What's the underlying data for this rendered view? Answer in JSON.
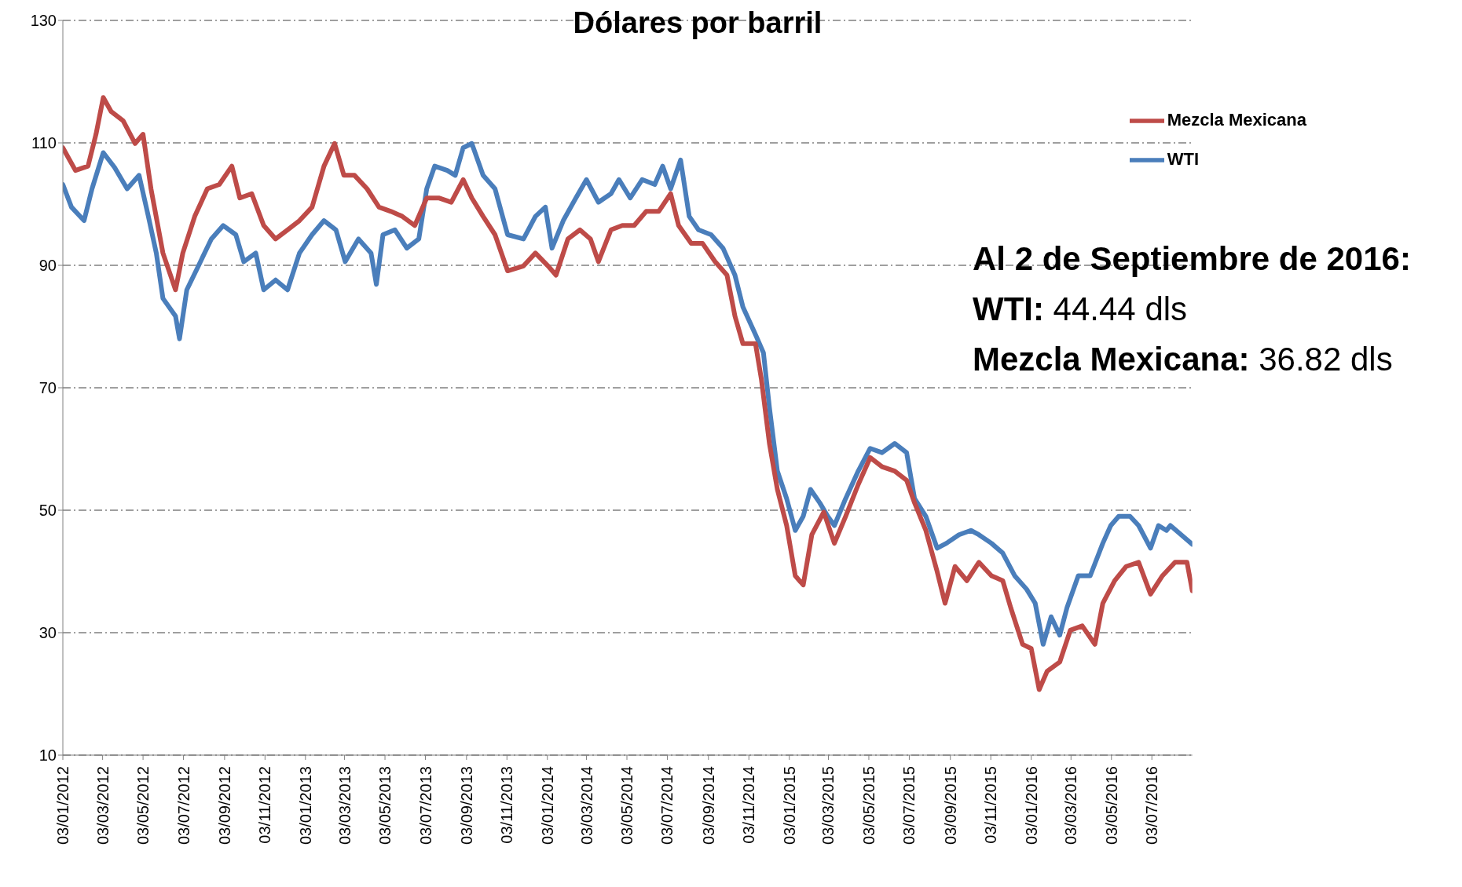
{
  "chart_data": {
    "type": "line",
    "title": "Dólares por barril",
    "annotations": [
      "Al 2 de Septiembre de 2016:",
      "WTI: 44.44 dls",
      "Mezcla Mexicana: 36.82 dls"
    ],
    "series": [
      {
        "name": "WTI",
        "color": "#4a7ebb",
        "x": [
          "2012-01-03",
          "2012-01-16",
          "2012-02-04",
          "2012-02-16",
          "2012-03-04",
          "2012-03-21",
          "2012-04-09",
          "2012-04-27",
          "2012-05-11",
          "2012-05-23",
          "2012-06-02",
          "2012-06-21",
          "2012-06-27",
          "2012-07-08",
          "2012-07-26",
          "2012-08-14",
          "2012-09-01",
          "2012-09-20",
          "2012-10-02",
          "2012-10-20",
          "2012-11-01",
          "2012-11-19",
          "2012-12-07",
          "2012-12-25",
          "2013-01-13",
          "2013-01-31",
          "2013-02-18",
          "2013-03-04",
          "2013-03-24",
          "2013-04-12",
          "2013-04-20",
          "2013-04-30",
          "2013-05-18",
          "2013-06-05",
          "2013-06-23",
          "2013-07-05",
          "2013-07-17",
          "2013-08-05",
          "2013-08-17",
          "2013-08-29",
          "2013-09-11",
          "2013-09-28",
          "2013-10-16",
          "2013-11-04",
          "2013-11-28",
          "2013-12-16",
          "2013-12-31",
          "2014-01-10",
          "2014-01-27",
          "2014-02-15",
          "2014-03-03",
          "2014-03-21",
          "2014-04-09",
          "2014-04-21",
          "2014-05-08",
          "2014-05-26",
          "2014-06-14",
          "2014-06-26",
          "2014-07-08",
          "2014-07-23",
          "2014-08-05",
          "2014-08-19",
          "2014-09-07",
          "2014-09-25",
          "2014-10-13",
          "2014-10-25",
          "2014-11-13",
          "2014-11-25",
          "2014-12-04",
          "2014-12-16",
          "2014-12-30",
          "2015-01-12",
          "2015-01-24",
          "2015-02-04",
          "2015-02-18",
          "2015-03-02",
          "2015-03-12",
          "2015-03-29",
          "2015-04-17",
          "2015-05-05",
          "2015-05-23",
          "2015-06-11",
          "2015-06-29",
          "2015-07-11",
          "2015-07-28",
          "2015-08-14",
          "2015-08-28",
          "2015-09-16",
          "2015-10-04",
          "2015-10-16",
          "2015-11-04",
          "2015-11-21",
          "2015-12-09",
          "2015-12-27",
          "2016-01-09",
          "2016-01-21",
          "2016-02-02",
          "2016-02-15",
          "2016-02-26",
          "2016-03-14",
          "2016-04-01",
          "2016-04-20",
          "2016-05-02",
          "2016-05-14",
          "2016-05-31",
          "2016-06-13",
          "2016-07-01",
          "2016-07-13",
          "2016-07-25",
          "2016-07-31",
          "2016-09-02"
        ],
        "values": [
          103.2,
          99.5,
          97.3,
          102.5,
          108.4,
          106,
          102.5,
          104.7,
          98,
          92,
          84.6,
          81.7,
          78,
          86,
          90,
          94.3,
          96.5,
          95,
          90.6,
          92,
          86,
          87.6,
          86,
          92,
          95,
          97.3,
          95.8,
          90.6,
          94.3,
          92,
          86.9,
          95,
          95.8,
          92.8,
          94.3,
          102.5,
          106.2,
          105.5,
          104.7,
          109.2,
          109.9,
          104.7,
          102.5,
          95,
          94.3,
          98,
          99.5,
          92.8,
          97.3,
          101,
          104,
          100.3,
          101.7,
          104,
          101,
          104,
          103.2,
          106.2,
          102.5,
          107.2,
          98,
          95.8,
          95,
          92.8,
          88.4,
          83.2,
          78.7,
          75.7,
          66.8,
          56.4,
          51.9,
          46.7,
          49,
          53.4,
          51.2,
          49,
          47.5,
          51.9,
          56.4,
          60.1,
          59.4,
          60.9,
          59.4,
          51.9,
          49,
          43.8,
          44.6,
          46,
          46.7,
          46,
          44.6,
          43,
          39.3,
          37.1,
          34.8,
          28.1,
          32.6,
          29.6,
          34.1,
          39.3,
          39.3,
          44.6,
          47.5,
          49,
          49,
          47.5,
          43.8,
          47.5,
          46.7,
          47.5,
          44.44
        ]
      },
      {
        "name": "Mezcla Mexicana",
        "color": "#be4b48",
        "x": [
          "2012-01-03",
          "2012-01-22",
          "2012-02-10",
          "2012-02-22",
          "2012-03-04",
          "2012-03-16",
          "2012-04-03",
          "2012-04-21",
          "2012-05-03",
          "2012-05-15",
          "2012-06-02",
          "2012-06-21",
          "2012-07-02",
          "2012-07-20",
          "2012-08-08",
          "2012-08-26",
          "2012-09-14",
          "2012-09-26",
          "2012-10-14",
          "2012-11-01",
          "2012-11-19",
          "2012-12-07",
          "2012-12-25",
          "2013-01-13",
          "2013-01-31",
          "2013-02-16",
          "2013-03-02",
          "2013-03-18",
          "2013-04-06",
          "2013-04-24",
          "2013-05-12",
          "2013-05-29",
          "2013-06-17",
          "2013-07-05",
          "2013-07-23",
          "2013-08-11",
          "2013-08-29",
          "2013-09-11",
          "2013-09-28",
          "2013-10-16",
          "2013-11-04",
          "2013-11-28",
          "2013-12-16",
          "2014-01-04",
          "2014-01-16",
          "2014-02-03",
          "2014-02-21",
          "2014-03-09",
          "2014-03-21",
          "2014-04-09",
          "2014-04-26",
          "2014-05-14",
          "2014-06-01",
          "2014-06-20",
          "2014-07-08",
          "2014-07-20",
          "2014-08-08",
          "2014-08-25",
          "2014-09-13",
          "2014-10-01",
          "2014-10-13",
          "2014-10-25",
          "2014-11-13",
          "2014-11-22",
          "2014-12-04",
          "2014-12-16",
          "2014-12-30",
          "2015-01-12",
          "2015-01-24",
          "2015-02-06",
          "2015-02-24",
          "2015-03-12",
          "2015-03-29",
          "2015-04-17",
          "2015-05-05",
          "2015-05-23",
          "2015-06-11",
          "2015-06-29",
          "2015-07-11",
          "2015-07-28",
          "2015-08-14",
          "2015-08-26",
          "2015-09-10",
          "2015-09-28",
          "2015-10-16",
          "2015-11-04",
          "2015-11-21",
          "2015-12-03",
          "2015-12-21",
          "2016-01-03",
          "2016-01-15",
          "2016-01-27",
          "2016-02-15",
          "2016-03-02",
          "2016-03-20",
          "2016-04-08",
          "2016-04-20",
          "2016-05-08",
          "2016-05-25",
          "2016-06-13",
          "2016-07-01",
          "2016-07-19",
          "2016-08-07",
          "2016-08-25",
          "2016-09-02"
        ],
        "values": [
          109.2,
          105.5,
          106.2,
          111.4,
          117.4,
          115.1,
          113.6,
          109.9,
          111.4,
          102.5,
          92,
          86,
          92,
          98,
          102.5,
          103.2,
          106.2,
          101,
          101.7,
          96.5,
          94.3,
          95.8,
          97.3,
          99.5,
          106.2,
          109.9,
          104.7,
          104.7,
          102.5,
          99.5,
          98.8,
          98,
          96.5,
          101,
          101,
          100.3,
          104,
          101,
          98,
          95,
          89.1,
          89.9,
          92,
          89.9,
          88.4,
          94.3,
          95.8,
          94.3,
          90.6,
          95.8,
          96.5,
          96.5,
          98.8,
          98.8,
          101.7,
          96.5,
          93.6,
          93.6,
          90.6,
          88.4,
          81.7,
          77.2,
          77.2,
          71.3,
          60.9,
          53.4,
          47.5,
          39.3,
          37.8,
          46,
          49.7,
          44.6,
          49,
          54.2,
          58.6,
          57.1,
          56.4,
          54.9,
          51.2,
          46.7,
          40,
          34.8,
          40.8,
          38.5,
          41.5,
          39.3,
          38.5,
          34.1,
          28.1,
          27.4,
          20.7,
          23.7,
          25.2,
          30.4,
          31.1,
          28.1,
          34.8,
          38.5,
          40.8,
          41.5,
          36.3,
          39.3,
          41.5,
          41.5,
          36.82
        ]
      }
    ],
    "xlim": [
      "2012-01-03",
      "2016-09-02"
    ],
    "xticks": [
      {
        "value": "2012-01-03",
        "label": "03/01/2012"
      },
      {
        "value": "2012-03-03",
        "label": "03/03/2012"
      },
      {
        "value": "2012-05-03",
        "label": "03/05/2012"
      },
      {
        "value": "2012-07-03",
        "label": "03/07/2012"
      },
      {
        "value": "2012-09-03",
        "label": "03/09/2012"
      },
      {
        "value": "2012-11-03",
        "label": "03/11/2012"
      },
      {
        "value": "2013-01-03",
        "label": "03/01/2013"
      },
      {
        "value": "2013-03-03",
        "label": "03/03/2013"
      },
      {
        "value": "2013-05-03",
        "label": "03/05/2013"
      },
      {
        "value": "2013-07-03",
        "label": "03/07/2013"
      },
      {
        "value": "2013-09-03",
        "label": "03/09/2013"
      },
      {
        "value": "2013-11-03",
        "label": "03/11/2013"
      },
      {
        "value": "2014-01-03",
        "label": "03/01/2014"
      },
      {
        "value": "2014-03-03",
        "label": "03/03/2014"
      },
      {
        "value": "2014-05-03",
        "label": "03/05/2014"
      },
      {
        "value": "2014-07-03",
        "label": "03/07/2014"
      },
      {
        "value": "2014-09-03",
        "label": "03/09/2014"
      },
      {
        "value": "2014-11-03",
        "label": "03/11/2014"
      },
      {
        "value": "2015-01-03",
        "label": "03/01/2015"
      },
      {
        "value": "2015-03-03",
        "label": "03/03/2015"
      },
      {
        "value": "2015-05-03",
        "label": "03/05/2015"
      },
      {
        "value": "2015-07-03",
        "label": "03/07/2015"
      },
      {
        "value": "2015-09-03",
        "label": "03/09/2015"
      },
      {
        "value": "2015-11-03",
        "label": "03/11/2015"
      },
      {
        "value": "2016-01-03",
        "label": "03/01/2016"
      },
      {
        "value": "2016-03-03",
        "label": "03/03/2016"
      },
      {
        "value": "2016-05-03",
        "label": "03/05/2016"
      },
      {
        "value": "2016-07-03",
        "label": "03/07/2016"
      }
    ],
    "ylim": [
      10,
      130
    ],
    "yticks": [
      10,
      30,
      50,
      70,
      90,
      110,
      130
    ],
    "grid": "y",
    "legend": "top right",
    "marker": "none",
    "line_style": "solid"
  }
}
